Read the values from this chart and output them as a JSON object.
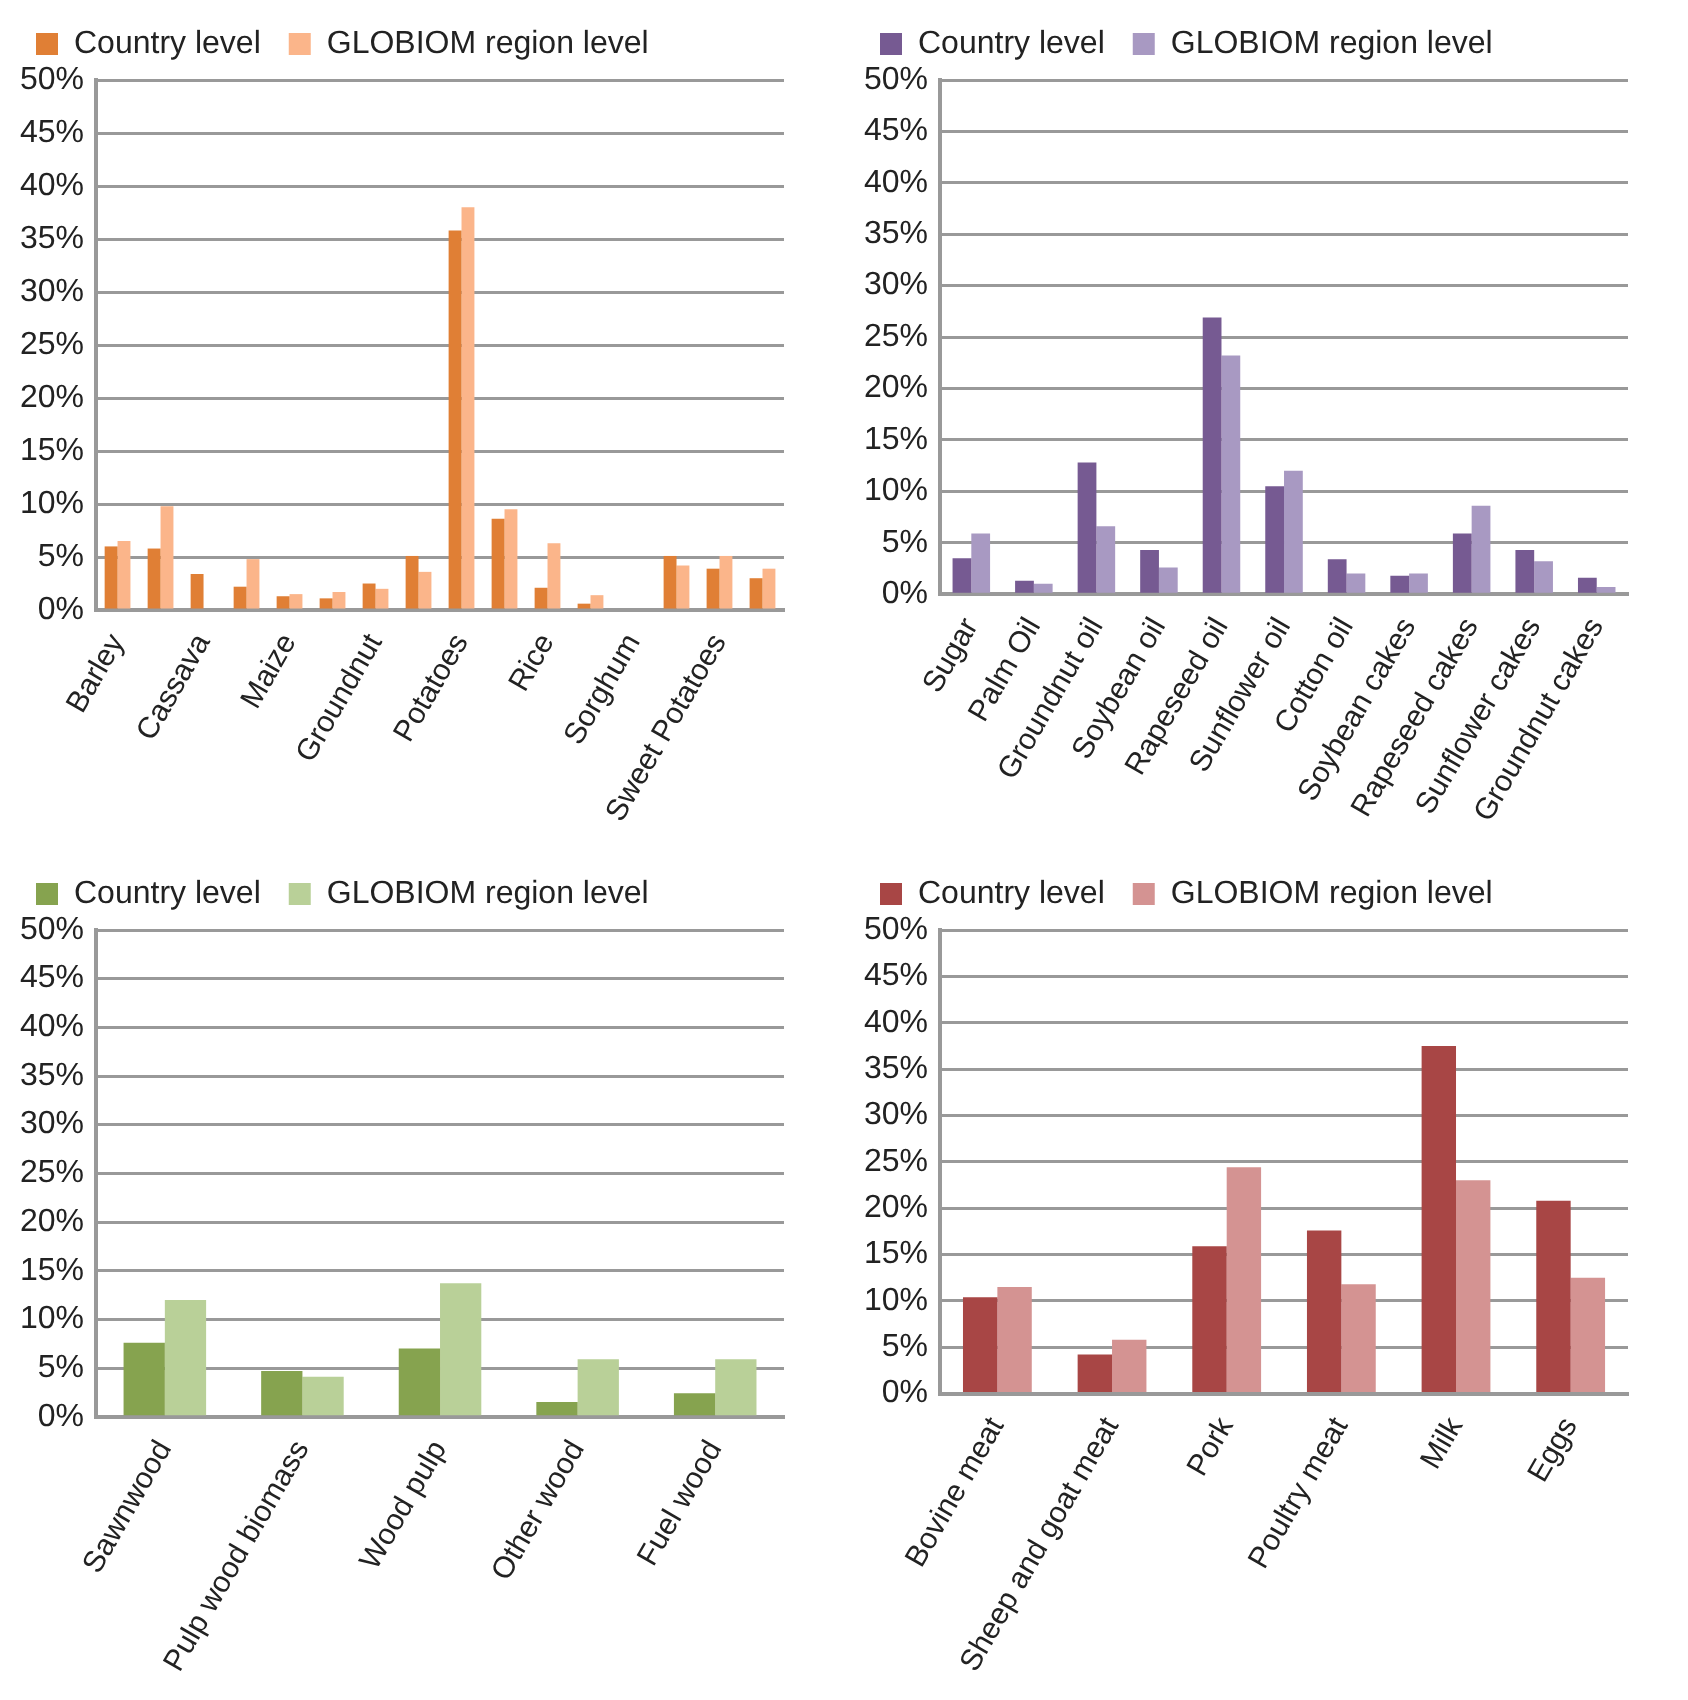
{
  "chart_data": [
    {
      "type": "bar",
      "categories": [
        "Barley",
        null,
        "Cassava",
        null,
        "Maize",
        null,
        "Groundnut",
        null,
        "Potatoes",
        null,
        "Rice",
        null,
        "Sorghum",
        null,
        "Sweet Potatoes",
        null
      ],
      "series": [
        {
          "name": "Country level",
          "color": "#e07f35",
          "values": [
            6.0,
            5.8,
            3.4,
            2.2,
            1.3,
            1.1,
            2.5,
            5.1,
            35.8,
            8.6,
            2.1,
            0.6,
            null,
            5.1,
            3.9,
            3.0
          ]
        },
        {
          "name": "GLOBIOM region level",
          "color": "#fbb58a",
          "values": [
            6.5,
            9.8,
            null,
            4.8,
            1.5,
            1.7,
            2.0,
            3.6,
            38.0,
            9.5,
            6.3,
            1.4,
            null,
            4.2,
            5.1,
            3.9
          ]
        }
      ],
      "ylim": [
        0,
        50
      ],
      "yticks": [
        {
          "value": 0,
          "label": "0%"
        },
        {
          "value": 5,
          "label": "5%"
        },
        {
          "value": 10,
          "label": "10%"
        },
        {
          "value": 15,
          "label": "15%"
        },
        {
          "value": 20,
          "label": "20%"
        },
        {
          "value": 25,
          "label": "25%"
        },
        {
          "value": 30,
          "label": "30%"
        },
        {
          "value": 35,
          "label": "35%"
        },
        {
          "value": 40,
          "label": "40%"
        },
        {
          "value": 45,
          "label": "45%"
        },
        {
          "value": 50,
          "label": "50%"
        }
      ],
      "grid": "y",
      "legend": "top left"
    },
    {
      "type": "bar",
      "categories": [
        "Sugar",
        "Palm Oil",
        "Groundnut oil",
        "Soybean oil",
        "Rapeseed oil",
        "Sunflower oil",
        "Cotton oil",
        "Soybean cakes",
        "Rapeseed cakes",
        "Sunflower cakes",
        "Groundnut cakes"
      ],
      "series": [
        {
          "name": "Country level",
          "color": "#765a92",
          "values": [
            3.5,
            1.3,
            12.8,
            4.3,
            26.9,
            10.5,
            3.4,
            1.8,
            5.9,
            4.3,
            1.6
          ]
        },
        {
          "name": "GLOBIOM region level",
          "color": "#a899c2",
          "values": [
            5.9,
            1.0,
            6.6,
            2.6,
            23.2,
            12.0,
            2.0,
            2.0,
            8.6,
            3.2,
            0.7
          ]
        }
      ],
      "ylim": [
        0,
        50
      ],
      "yticks": [
        {
          "value": 0,
          "label": "0%"
        },
        {
          "value": 5,
          "label": "5%"
        },
        {
          "value": 10,
          "label": "10%"
        },
        {
          "value": 15,
          "label": "15%"
        },
        {
          "value": 20,
          "label": "20%"
        },
        {
          "value": 25,
          "label": "25%"
        },
        {
          "value": 30,
          "label": "30%"
        },
        {
          "value": 35,
          "label": "35%"
        },
        {
          "value": 40,
          "label": "40%"
        },
        {
          "value": 45,
          "label": "45%"
        },
        {
          "value": 50,
          "label": "50%"
        }
      ],
      "grid": "y",
      "legend": "top left"
    },
    {
      "type": "bar",
      "categories": [
        "Sawnwood",
        "Pulp wood biomass",
        "Wood pulp",
        "Other wood",
        "Fuel wood"
      ],
      "series": [
        {
          "name": "Country level",
          "color": "#86a34f",
          "values": [
            7.6,
            4.7,
            7.0,
            1.5,
            2.4
          ]
        },
        {
          "name": "GLOBIOM region level",
          "color": "#b9d098",
          "values": [
            12.0,
            4.1,
            13.7,
            5.9,
            5.9
          ]
        }
      ],
      "ylim": [
        0,
        50
      ],
      "yticks": [
        {
          "value": 0,
          "label": "0%"
        },
        {
          "value": 5,
          "label": "5%"
        },
        {
          "value": 10,
          "label": "10%"
        },
        {
          "value": 15,
          "label": "15%"
        },
        {
          "value": 20,
          "label": "20%"
        },
        {
          "value": 25,
          "label": "25%"
        },
        {
          "value": 30,
          "label": "30%"
        },
        {
          "value": 35,
          "label": "35%"
        },
        {
          "value": 40,
          "label": "40%"
        },
        {
          "value": 45,
          "label": "45%"
        },
        {
          "value": 50,
          "label": "50%"
        }
      ],
      "grid": "y",
      "legend": "top left"
    },
    {
      "type": "bar",
      "categories": [
        "Bovine meat",
        "Sheep and goat meat",
        "Pork",
        "Poultry meat",
        "Milk",
        "Eggs"
      ],
      "series": [
        {
          "name": "Country level",
          "color": "#a84645",
          "values": [
            10.4,
            4.2,
            15.9,
            17.6,
            37.5,
            20.8
          ]
        },
        {
          "name": "GLOBIOM region level",
          "color": "#d49392",
          "values": [
            11.5,
            5.8,
            24.4,
            11.8,
            23.0,
            12.5
          ]
        }
      ],
      "ylim": [
        0,
        50
      ],
      "yticks": [
        {
          "value": 0,
          "label": "0%"
        },
        {
          "value": 5,
          "label": "5%"
        },
        {
          "value": 10,
          "label": "10%"
        },
        {
          "value": 15,
          "label": "15%"
        },
        {
          "value": 20,
          "label": "20%"
        },
        {
          "value": 25,
          "label": "25%"
        },
        {
          "value": 30,
          "label": "30%"
        },
        {
          "value": 35,
          "label": "35%"
        },
        {
          "value": 40,
          "label": "40%"
        },
        {
          "value": 45,
          "label": "45%"
        },
        {
          "value": 50,
          "label": "50%"
        }
      ],
      "grid": "y",
      "legend": "top left"
    }
  ]
}
